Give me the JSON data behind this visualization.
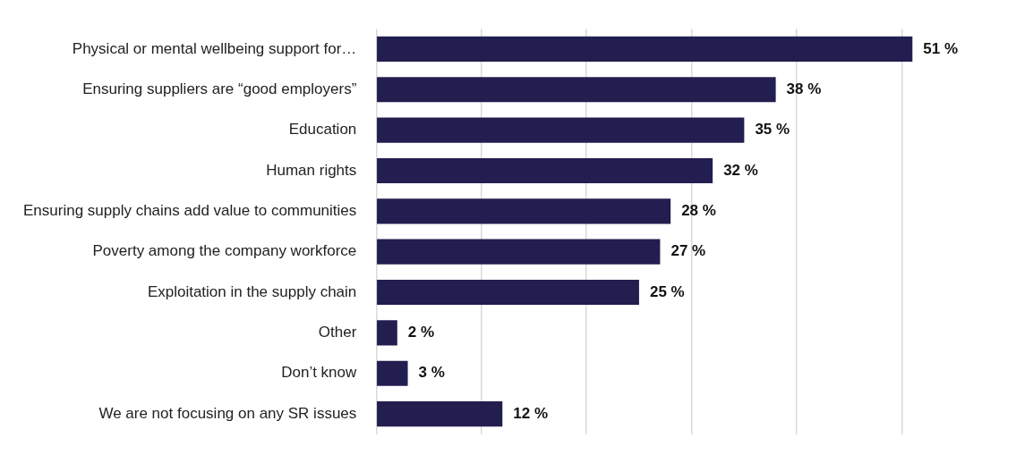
{
  "chart_data": {
    "type": "bar",
    "orientation": "horizontal",
    "categories": [
      "Physical or mental wellbeing support for…",
      "Ensuring suppliers are “good employers”",
      "Education",
      "Human rights",
      "Ensuring supply chains add value to communities",
      "Poverty among the company workforce",
      "Exploitation in the supply chain",
      "Other",
      "Don’t know",
      "We are not focusing on any SR issues"
    ],
    "values": [
      51,
      38,
      35,
      32,
      28,
      27,
      25,
      2,
      3,
      12
    ],
    "value_labels": [
      "51 %",
      "38 %",
      "35 %",
      "32 %",
      "28 %",
      "27 %",
      "25 %",
      "2 %",
      "3 %",
      "12 %"
    ],
    "color": "#221e50",
    "xticks": [
      {
        "value": 0,
        "label": null
      },
      {
        "value": 10,
        "label": null
      },
      {
        "value": 20,
        "label": null
      },
      {
        "value": 30,
        "label": null
      },
      {
        "value": 40,
        "label": null
      },
      {
        "value": 50,
        "label": null
      }
    ],
    "grid": "x",
    "tick_labels": "y",
    "legend": false
  }
}
